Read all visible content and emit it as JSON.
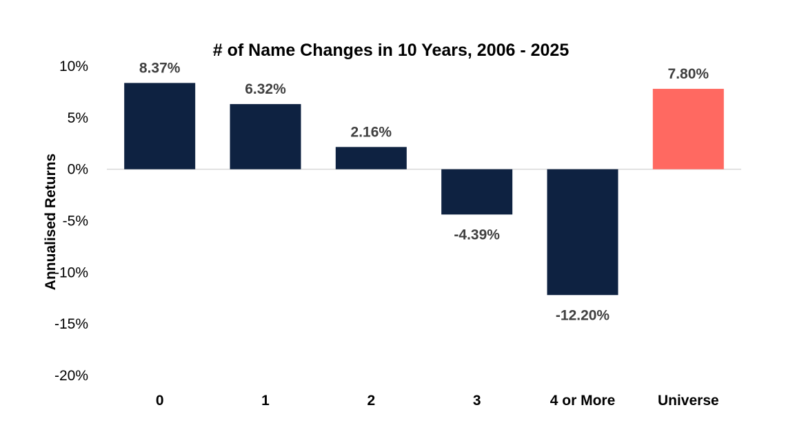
{
  "chart_data": {
    "type": "bar",
    "title": "# of Name Changes in 10 Years, 2006 - 2025",
    "xlabel": "",
    "ylabel": "Annualised Returns",
    "categories": [
      "0",
      "1",
      "2",
      "3",
      "4 or More",
      "Universe"
    ],
    "values": [
      8.37,
      6.32,
      2.16,
      -4.39,
      -12.2,
      7.8
    ],
    "data_labels": [
      "8.37%",
      "6.32%",
      "2.16%",
      "-4.39%",
      "-12.20%",
      "7.80%"
    ],
    "ylim": [
      -20,
      10
    ],
    "yticks": [
      10,
      5,
      0,
      -5,
      -10,
      -15,
      -20
    ],
    "ytick_labels": [
      "10%",
      "5%",
      "0%",
      "-5%",
      "-10%",
      "-15%",
      "-20%"
    ],
    "grid": false,
    "legend": "none",
    "colors": {
      "bar": "#0E2241",
      "highlight_bar": "#FF6961",
      "zero_line": "#D9D9D9",
      "data_label": "#404040"
    },
    "highlight_index": 5
  }
}
